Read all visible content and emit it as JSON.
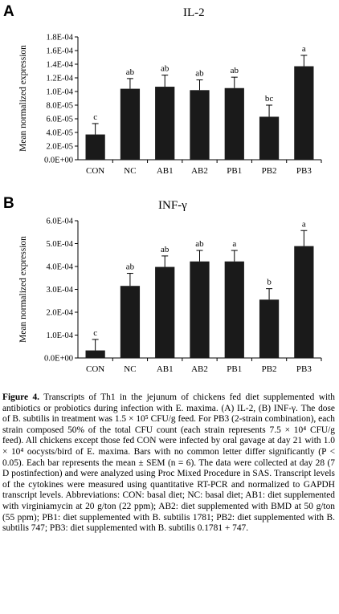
{
  "panels": [
    {
      "letter": "A",
      "title": "IL-2"
    },
    {
      "letter": "B",
      "title": "INF-γ"
    }
  ],
  "chart_data": [
    {
      "type": "bar",
      "title": "IL-2",
      "ylabel": "Mean normalized expression",
      "xlabel": "",
      "categories": [
        "CON",
        "NC",
        "AB1",
        "AB2",
        "PB1",
        "PB2",
        "PB3"
      ],
      "values": [
        3.7e-05,
        0.000104,
        0.000107,
        0.000102,
        0.000105,
        6.3e-05,
        0.000137
      ],
      "errors": [
        1.6e-05,
        1.5e-05,
        1.7e-05,
        1.5e-05,
        1.6e-05,
        1.7e-05,
        1.6e-05
      ],
      "significance_letters": [
        "c",
        "ab",
        "ab",
        "ab",
        "ab",
        "bc",
        "a"
      ],
      "ylim": [
        0,
        0.00018
      ],
      "yticks": [
        "0.0E+00",
        "2.0E-05",
        "4.0E-05",
        "6.0E-05",
        "8.0E-05",
        "1.0E-04",
        "1.2E-04",
        "1.4E-04",
        "1.6E-04",
        "1.8E-04"
      ],
      "ytick_values": [
        0,
        2e-05,
        4e-05,
        6e-05,
        8e-05,
        0.0001,
        0.00012,
        0.00014,
        0.00016,
        0.00018
      ],
      "bar_color": "#1a1a1a",
      "grid": false
    },
    {
      "type": "bar",
      "title": "INF-γ",
      "ylabel": "Mean normalized expression",
      "xlabel": "",
      "categories": [
        "CON",
        "NC",
        "AB1",
        "AB2",
        "PB1",
        "PB2",
        "PB3"
      ],
      "values": [
        3.3e-05,
        0.000315,
        0.000398,
        0.000422,
        0.000422,
        0.000255,
        0.000489
      ],
      "errors": [
        4.8e-05,
        5.5e-05,
        4.8e-05,
        4.8e-05,
        4.8e-05,
        4.8e-05,
        6.8e-05
      ],
      "significance_letters": [
        "c",
        "ab",
        "ab",
        "ab",
        "a",
        "b",
        "a"
      ],
      "ylim": [
        0,
        0.0006
      ],
      "yticks": [
        "0.0E+00",
        "1.0E-04",
        "2.0E-04",
        "3.0E-04",
        "4.0E-04",
        "5.0E-04",
        "6.0E-04"
      ],
      "ytick_values": [
        0,
        0.0001,
        0.0002,
        0.0003,
        0.0004,
        0.0005,
        0.0006
      ],
      "bar_color": "#1a1a1a",
      "grid": false
    }
  ],
  "caption": {
    "label": "Figure 4.",
    "text": "Transcripts of Th1 in the jejunum of chickens fed diet supplemented with antibiotics or probiotics during infection with E. maxima. (A) IL-2, (B) INF-γ. The dose of B. subtilis in treatment was 1.5 × 10⁵ CFU/g feed. For PB3 (2-strain combination), each strain composed 50% of the total CFU count (each strain represents 7.5 × 10⁴ CFU/g feed). All chickens except those fed CON were infected by oral gavage at day 21 with 1.0 × 10⁴ oocysts/bird of E. maxima. Bars with no common letter differ significantly (P < 0.05). Each bar represents the mean ± SEM (n = 6). The data were collected at day 28 (7 D postinfection) and were analyzed using Proc Mixed Procedure in SAS. Transcript levels of the cytokines were measured using quantitative RT-PCR and normalized to GAPDH transcript levels. Abbreviations: CON: basal diet; NC: basal diet; AB1: diet supplemented with virginiamycin at 20 g/ton (22 ppm); AB2: diet supplemented with BMD at 50 g/ton (55 ppm); PB1: diet supplemented with B. subtilis 1781; PB2: diet supplemented with B. subtilis 747; PB3: diet supplemented with B. subtilis 0.1781 + 747."
  }
}
